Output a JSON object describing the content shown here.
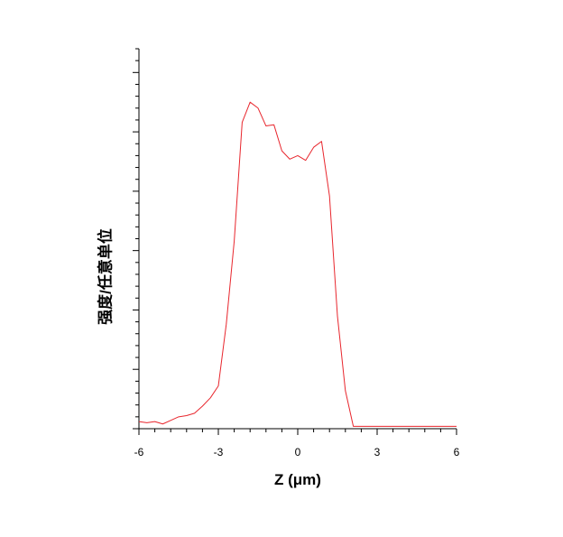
{
  "chart_data": {
    "type": "line",
    "title": "",
    "xlabel": "Z (μm)",
    "ylabel": "强度/任意单位",
    "xlim": [
      -6,
      6
    ],
    "ylim": [
      0,
      32
    ],
    "x_ticks": [
      -6,
      -3,
      0,
      3,
      6
    ],
    "x_tick_labels": [
      "-6",
      "-3",
      "0",
      "3",
      "6"
    ],
    "x_minor_step": 0.6,
    "y_major_step": 5,
    "y_minor_step": 1,
    "y_tick_labels_shown": false,
    "grid": false,
    "legend": "none",
    "series": [
      {
        "color": "#e8262d",
        "x": [
          -6.0,
          -5.7,
          -5.4,
          -5.1,
          -4.8,
          -4.5,
          -4.2,
          -3.9,
          -3.6,
          -3.3,
          -3.0,
          -2.7,
          -2.4,
          -2.1,
          -1.8,
          -1.5,
          -1.2,
          -0.9,
          -0.6,
          -0.3,
          0.0,
          0.3,
          0.6,
          0.9,
          1.2,
          1.5,
          1.8,
          2.1,
          2.4,
          3.0,
          4.0,
          5.0,
          6.0
        ],
        "y": [
          0.6,
          0.5,
          0.6,
          0.4,
          0.7,
          1.0,
          1.1,
          1.3,
          1.9,
          2.6,
          3.6,
          8.8,
          15.8,
          25.8,
          27.5,
          27.0,
          25.5,
          25.6,
          23.4,
          22.7,
          23.0,
          22.6,
          23.7,
          24.2,
          19.6,
          9.5,
          3.2,
          0.2,
          0.2,
          0.2,
          0.2,
          0.2,
          0.2
        ]
      }
    ]
  }
}
